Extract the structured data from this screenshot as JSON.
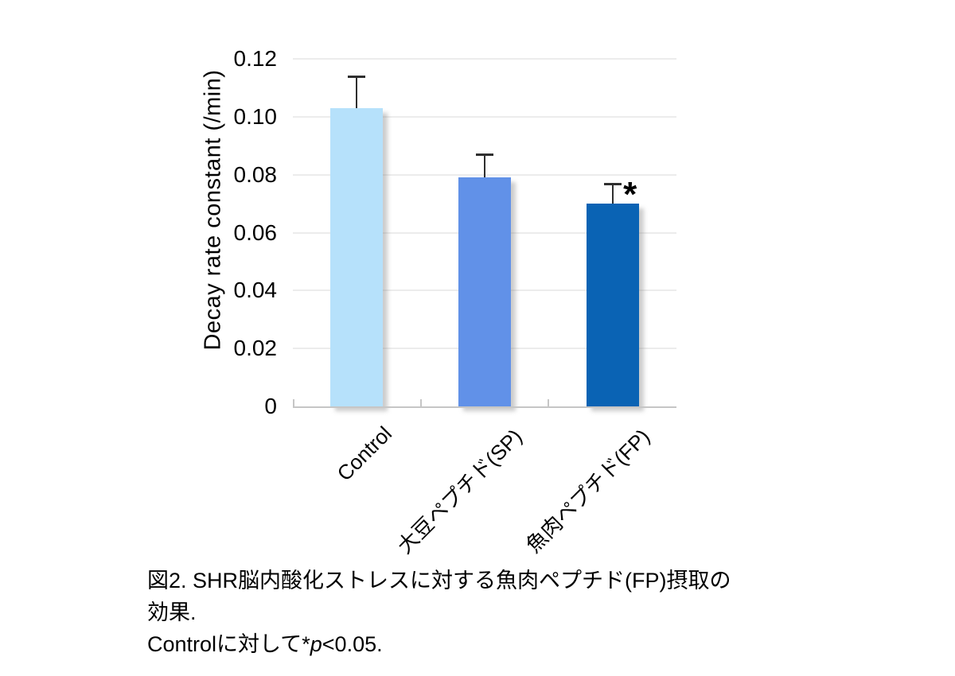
{
  "figure": {
    "caption_line1": "図2. SHR脳内酸化ストレスに対する魚肉ペプチド(FP)摂取の効果.",
    "caption_line2_pre": "Controlに対して*",
    "caption_line2_italic": "p",
    "caption_line2_post": "<0.05."
  },
  "chart_data": {
    "type": "bar",
    "title": "",
    "xlabel": "",
    "ylabel": "Decay rate constant (/min)",
    "categories": [
      "Control",
      "大豆ペプチド(SP)",
      "魚肉ペプチド(FP)"
    ],
    "values": [
      0.103,
      0.079,
      0.07
    ],
    "errors_upper": [
      0.011,
      0.008,
      0.007
    ],
    "bar_colors": [
      "#B6E1FB",
      "#6191E8",
      "#0A63B4"
    ],
    "ylim": [
      0,
      0.12
    ],
    "yticks": [
      0,
      0.02,
      0.04,
      0.06,
      0.08,
      0.1,
      0.12
    ],
    "ytick_labels": [
      "0",
      "0.02",
      "0.04",
      "0.06",
      "0.08",
      "0.10",
      "0.12"
    ],
    "grid": true,
    "legend": "none",
    "annotations": [
      {
        "text": "*",
        "category_index": 2,
        "y": 0.073
      }
    ]
  }
}
